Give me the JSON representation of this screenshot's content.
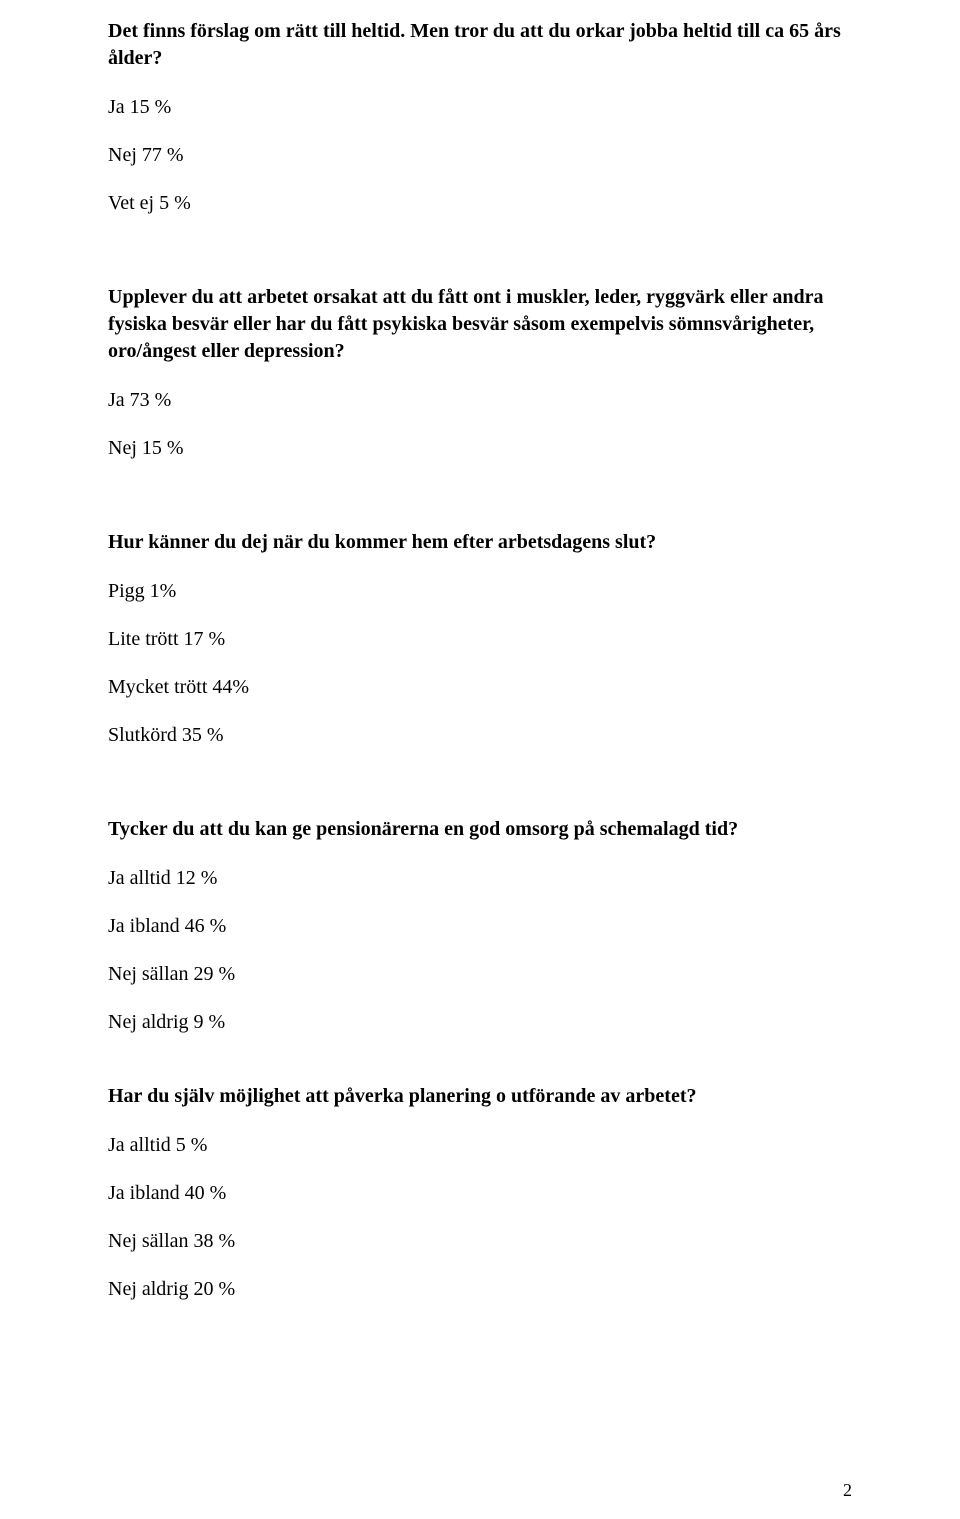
{
  "q1": {
    "text": "Det finns förslag om rätt till heltid. Men tror du att du orkar jobba heltid till ca 65 års ålder?",
    "answers": [
      "Ja 15 %",
      "Nej 77 %",
      "Vet ej 5 %"
    ]
  },
  "q2": {
    "text": "Upplever du att arbetet orsakat att du fått ont i muskler, leder, ryggvärk eller andra fysiska besvär eller har du fått psykiska besvär såsom exempelvis sömnsvårigheter, oro/ångest eller depression?",
    "answers": [
      "Ja 73 %",
      "Nej 15 %"
    ]
  },
  "q3": {
    "text": "Hur känner du dej när du kommer hem efter arbetsdagens slut?",
    "answers": [
      "Pigg 1%",
      "Lite trött 17 %",
      "Mycket trött 44%",
      "Slutkörd 35 %"
    ]
  },
  "q4": {
    "text": "Tycker du att du kan ge pensionärerna en god omsorg på schemalagd tid?",
    "answers": [
      "Ja alltid 12 %",
      "Ja ibland 46 %",
      "Nej sällan  29 %",
      "Nej aldrig  9 %"
    ]
  },
  "q5": {
    "text": "Har du själv möjlighet att påverka planering o utförande av arbetet?",
    "answers": [
      "Ja alltid 5 %",
      "Ja ibland 40 %",
      "Nej sällan 38 %",
      "Nej aldrig 20 %"
    ]
  },
  "page_number": "2"
}
